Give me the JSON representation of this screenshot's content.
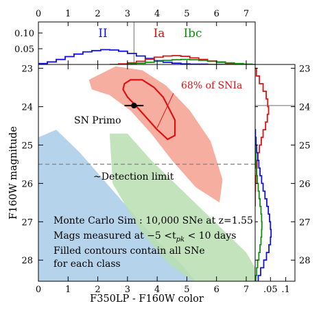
{
  "chart_data": [
    {
      "id": "top-histogram",
      "type": "line",
      "xlim": [
        0,
        7.3
      ],
      "x_ticks": [
        "0",
        "1",
        "2",
        "3",
        "4",
        "5",
        "6",
        "7"
      ],
      "y_ticks": [
        "0.05",
        "0.10"
      ],
      "ylim": [
        0,
        0.135
      ],
      "xlabel": "",
      "ylabel": "",
      "labels": [
        {
          "text": "II",
          "color": "#1010e0"
        },
        {
          "text": "Ia",
          "color": "#e01010"
        },
        {
          "text": "Ibc",
          "color": "#109010"
        }
      ],
      "marker_x": 3.22,
      "series": [
        {
          "name": "II",
          "color": "#1010e0",
          "x": [
            0.0,
            0.3,
            0.6,
            0.9,
            1.2,
            1.5,
            1.8,
            2.1,
            2.4,
            2.7,
            3.0,
            3.3,
            3.6,
            3.9,
            4.2,
            4.5,
            4.8,
            5.1,
            5.4,
            5.7,
            6.0,
            6.3
          ],
          "y": [
            0.003,
            0.008,
            0.016,
            0.025,
            0.033,
            0.04,
            0.044,
            0.047,
            0.046,
            0.042,
            0.035,
            0.027,
            0.019,
            0.012,
            0.007,
            0.004,
            0.002,
            0.001,
            0.001,
            0.0,
            0.0,
            0.0
          ]
        },
        {
          "name": "Ia",
          "color": "#e01010",
          "x": [
            2.4,
            2.7,
            3.0,
            3.3,
            3.6,
            3.9,
            4.2,
            4.5,
            4.8,
            5.1,
            5.4,
            5.7,
            6.0,
            6.3,
            6.6,
            6.9
          ],
          "y": [
            0.0,
            0.002,
            0.005,
            0.01,
            0.017,
            0.023,
            0.027,
            0.028,
            0.026,
            0.021,
            0.016,
            0.011,
            0.007,
            0.004,
            0.002,
            0.0
          ]
        },
        {
          "name": "Ibc",
          "color": "#109010",
          "x": [
            2.7,
            3.0,
            3.3,
            3.6,
            3.9,
            4.2,
            4.5,
            4.8,
            5.1,
            5.4,
            5.7,
            6.0,
            6.3,
            6.6,
            6.9,
            7.2
          ],
          "y": [
            0.0,
            0.002,
            0.004,
            0.007,
            0.01,
            0.013,
            0.015,
            0.016,
            0.015,
            0.013,
            0.01,
            0.008,
            0.005,
            0.003,
            0.001,
            0.0
          ]
        }
      ]
    },
    {
      "id": "main-scatter",
      "type": "scatter",
      "xlabel": "F350LP - F160W color",
      "ylabel": "F160W magnitude",
      "xlim": [
        0,
        7.3
      ],
      "ylim": [
        28.55,
        22.9
      ],
      "x_ticks": [
        "0",
        "1",
        "2",
        "3",
        "4",
        "5",
        "6",
        "7"
      ],
      "y_ticks": [
        "23",
        "24",
        "25",
        "26",
        "27",
        "28"
      ],
      "detection_limit": 25.5,
      "annotations": {
        "detection": "~Detection limit",
        "sn_primo": "SN Primo",
        "contour68": "68% of SNIa",
        "note_lines": [
          "Monte Carlo Sim : 10,000 SNe at z=1.55",
          "Mags measured at −5 <t",
          "pk",
          " < 10 days",
          "Filled contours contain all SNe",
          "for each class"
        ]
      },
      "regions": [
        {
          "name": "II",
          "color": "#a8cce8",
          "x": [
            0.0,
            0.0,
            0.6,
            1.4,
            2.3,
            3.2,
            4.0,
            4.8,
            5.3,
            5.3,
            4.3,
            3.1,
            2.0,
            1.1,
            0.4
          ],
          "y": [
            28.55,
            24.8,
            24.6,
            25.2,
            26.0,
            26.8,
            27.5,
            28.1,
            28.55,
            28.55,
            28.55,
            28.55,
            28.55,
            28.55,
            28.55
          ]
        },
        {
          "name": "Ibc",
          "color": "#b8deb0",
          "x": [
            2.4,
            3.0,
            3.8,
            4.6,
            5.4,
            6.2,
            7.0,
            7.3,
            7.3,
            6.5,
            5.2,
            4.4,
            3.4,
            2.5
          ],
          "y": [
            24.7,
            24.7,
            25.4,
            26.0,
            26.6,
            27.2,
            27.8,
            28.2,
            28.55,
            28.55,
            28.55,
            28.1,
            27.2,
            26.0
          ]
        },
        {
          "name": "Ia",
          "color": "#f4a090",
          "x": [
            1.7,
            2.6,
            3.5,
            4.3,
            5.1,
            5.8,
            6.2,
            6.1,
            5.3,
            4.5,
            3.8,
            3.1,
            2.4,
            1.8
          ],
          "y": [
            23.3,
            22.95,
            23.05,
            23.45,
            24.1,
            24.9,
            25.9,
            26.5,
            26.1,
            25.4,
            24.7,
            24.1,
            23.7,
            23.55
          ]
        }
      ],
      "contour68": {
        "color": "#e01010",
        "x": [
          3.1,
          3.5,
          3.9,
          4.2,
          4.4,
          4.6,
          4.6,
          4.35,
          4.0,
          3.6,
          3.25,
          3.0,
          2.85,
          2.9
        ],
        "y": [
          23.3,
          23.3,
          23.5,
          23.75,
          24.05,
          24.35,
          24.75,
          24.85,
          24.6,
          24.25,
          23.95,
          23.75,
          23.55,
          23.4
        ]
      },
      "point": {
        "x": 3.22,
        "y": 23.97,
        "xerr": 0.32
      }
    },
    {
      "id": "right-histogram",
      "type": "line",
      "xlim": [
        0,
        0.13
      ],
      "x_ticks": [
        ".05",
        ".1"
      ],
      "marker_y": 23.97,
      "series": [
        {
          "name": "Ia",
          "color": "#e01010",
          "mag": [
            23.0,
            23.2,
            23.4,
            23.6,
            23.8,
            24.0,
            24.2,
            24.4,
            24.6,
            24.8,
            25.0,
            25.2,
            25.4,
            25.6,
            25.8,
            26.0,
            26.2,
            26.4
          ],
          "frac": [
            0.004,
            0.014,
            0.026,
            0.036,
            0.041,
            0.044,
            0.04,
            0.034,
            0.026,
            0.02,
            0.014,
            0.009,
            0.006,
            0.004,
            0.002,
            0.001,
            0.0,
            0.0
          ]
        },
        {
          "name": "II",
          "color": "#1010e0",
          "mag": [
            24.6,
            24.8,
            25.0,
            25.2,
            25.4,
            25.6,
            25.8,
            26.0,
            26.2,
            26.4,
            26.6,
            26.8,
            27.0,
            27.2,
            27.4,
            27.6,
            27.8,
            28.0,
            28.2,
            28.4
          ],
          "frac": [
            0.001,
            0.003,
            0.005,
            0.008,
            0.012,
            0.016,
            0.021,
            0.026,
            0.032,
            0.038,
            0.043,
            0.047,
            0.05,
            0.052,
            0.05,
            0.045,
            0.037,
            0.028,
            0.018,
            0.01
          ]
        },
        {
          "name": "Ibc",
          "color": "#109010",
          "mag": [
            24.8,
            25.0,
            25.2,
            25.4,
            25.6,
            25.8,
            26.0,
            26.2,
            26.4,
            26.6,
            26.8,
            27.0,
            27.2,
            27.4,
            27.6,
            27.8,
            28.0,
            28.2,
            28.4
          ],
          "frac": [
            0.0,
            0.001,
            0.002,
            0.003,
            0.005,
            0.007,
            0.01,
            0.013,
            0.016,
            0.019,
            0.021,
            0.022,
            0.021,
            0.019,
            0.016,
            0.012,
            0.008,
            0.005,
            0.002
          ]
        }
      ]
    }
  ]
}
